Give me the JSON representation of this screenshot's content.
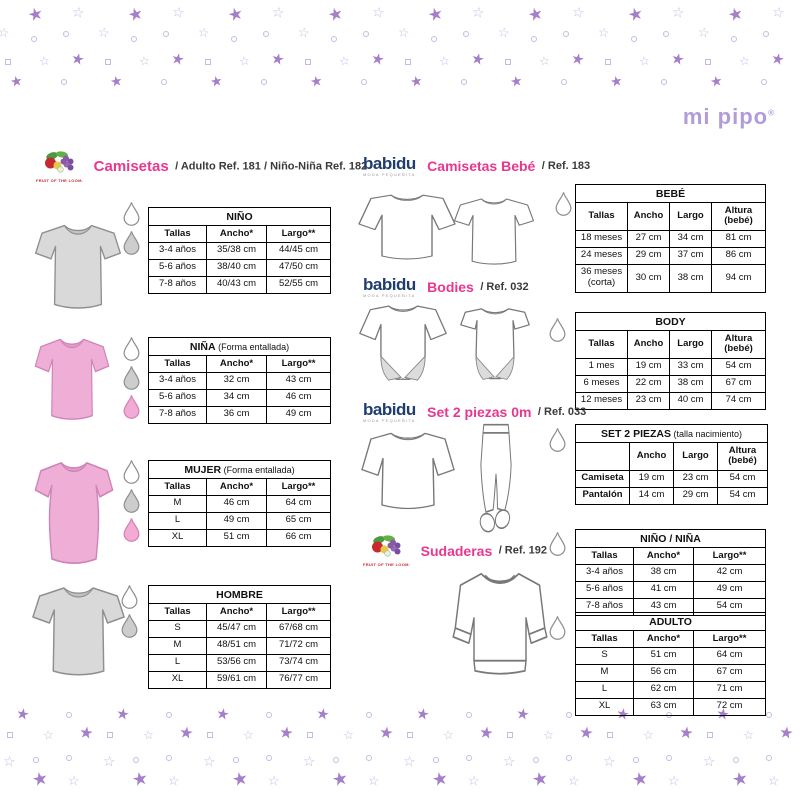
{
  "logos": {
    "mipipo": "mi pipo",
    "registered": "®",
    "fruit_of_the_loom": "FRUIT OF THE LOOM.",
    "babidu": "babidu",
    "babidu_tagline": "moda pequeñita"
  },
  "colors": {
    "accent_pink": "#e8378f",
    "babidu_navy": "#1f3d70",
    "mipipo_purple": "#b19cd8",
    "star_purple": "#a57fc9",
    "star_outline": "#c9b9e4",
    "tee_grey": "#d9d9d9",
    "tee_pink": "#efaed6"
  },
  "sections": {
    "camisetas": {
      "brand": "fruit-of-the-loom",
      "title": "Camisetas",
      "ref": "/ Adulto Ref. 181 / Niño-Niña Ref. 182"
    },
    "camisetas_bebe": {
      "brand": "babidu",
      "title": "Camisetas Bebé",
      "ref": "/ Ref. 183"
    },
    "bodies": {
      "brand": "babidu",
      "title": "Bodies",
      "ref": "/ Ref. 032"
    },
    "set_2_piezas": {
      "brand": "babidu",
      "title": "Set 2 piezas 0m",
      "ref": "/ Ref. 033"
    },
    "sudaderas": {
      "brand": "fruit-of-the-loom",
      "title": "Sudaderas",
      "ref": "/ Ref. 192"
    }
  },
  "tables": {
    "nino": {
      "title": "NIÑO",
      "note": "",
      "headers": [
        "Tallas",
        "Ancho*",
        "Largo**"
      ],
      "rows": [
        [
          "3-4 años",
          "35/38 cm",
          "44/45 cm"
        ],
        [
          "5-6 años",
          "38/40 cm",
          "47/50 cm"
        ],
        [
          "7-8 años",
          "40/43 cm",
          "52/55 cm"
        ]
      ],
      "drops": [
        "white",
        "grey"
      ]
    },
    "nina": {
      "title": "NIÑA",
      "note": "(Forma entallada)",
      "headers": [
        "Tallas",
        "Ancho*",
        "Largo**"
      ],
      "rows": [
        [
          "3-4 años",
          "32 cm",
          "43 cm"
        ],
        [
          "5-6 años",
          "34 cm",
          "46 cm"
        ],
        [
          "7-8 años",
          "36 cm",
          "49 cm"
        ]
      ],
      "drops": [
        "white",
        "grey",
        "pink"
      ]
    },
    "mujer": {
      "title": "MUJER",
      "note": "(Forma entallada)",
      "headers": [
        "Tallas",
        "Ancho*",
        "Largo**"
      ],
      "rows": [
        [
          "M",
          "46 cm",
          "64 cm"
        ],
        [
          "L",
          "49 cm",
          "65 cm"
        ],
        [
          "XL",
          "51 cm",
          "66 cm"
        ]
      ],
      "drops": [
        "white",
        "grey",
        "pink"
      ]
    },
    "hombre": {
      "title": "HOMBRE",
      "note": "",
      "headers": [
        "Tallas",
        "Ancho*",
        "Largo**"
      ],
      "rows": [
        [
          "S",
          "45/47 cm",
          "67/68 cm"
        ],
        [
          "M",
          "48/51 cm",
          "71/72 cm"
        ],
        [
          "L",
          "53/56 cm",
          "73/74 cm"
        ],
        [
          "XL",
          "59/61 cm",
          "76/77 cm"
        ]
      ],
      "drops": [
        "white",
        "grey"
      ]
    },
    "bebe": {
      "title": "BEBÉ",
      "note": "",
      "headers": [
        "Tallas",
        "Ancho",
        "Largo",
        "Altura (bebé)"
      ],
      "rows": [
        [
          "18 meses",
          "27 cm",
          "34 cm",
          "81 cm"
        ],
        [
          "24 meses",
          "29 cm",
          "37 cm",
          "86 cm"
        ],
        [
          "36 meses (corta)",
          "30 cm",
          "38 cm",
          "94 cm"
        ]
      ],
      "drops": [
        "white"
      ]
    },
    "body": {
      "title": "BODY",
      "note": "",
      "headers": [
        "Tallas",
        "Ancho",
        "Largo",
        "Altura (bebé)"
      ],
      "rows": [
        [
          "1 mes",
          "19 cm",
          "33 cm",
          "54 cm"
        ],
        [
          "6 meses",
          "22 cm",
          "38 cm",
          "67 cm"
        ],
        [
          "12 meses",
          "23 cm",
          "40 cm",
          "74 cm"
        ]
      ],
      "drops": [
        "white"
      ]
    },
    "set": {
      "title": "SET 2 PIEZAS",
      "note": "(talla nacimiento)",
      "headers": [
        "",
        "Ancho",
        "Largo",
        "Altura (bebé)"
      ],
      "rows": [
        [
          "Camiseta",
          "19 cm",
          "23 cm",
          "54 cm"
        ],
        [
          "Pantalón",
          "14 cm",
          "29 cm",
          "54 cm"
        ]
      ],
      "drops": [
        "white"
      ],
      "bold_first_col": true
    },
    "nino_nina": {
      "title": "NIÑO / NIÑA",
      "note": "",
      "headers": [
        "Tallas",
        "Ancho*",
        "Largo**"
      ],
      "rows": [
        [
          "3-4 años",
          "38 cm",
          "42 cm"
        ],
        [
          "5-6 años",
          "41 cm",
          "49 cm"
        ],
        [
          "7-8 años",
          "43 cm",
          "54 cm"
        ]
      ],
      "drops": [
        "white"
      ]
    },
    "adulto": {
      "title": "ADULTO",
      "note": "",
      "headers": [
        "Tallas",
        "Ancho*",
        "Largo**"
      ],
      "rows": [
        [
          "S",
          "51 cm",
          "64 cm"
        ],
        [
          "M",
          "56 cm",
          "67 cm"
        ],
        [
          "L",
          "62 cm",
          "71 cm"
        ],
        [
          "XL",
          "63 cm",
          "72 cm"
        ]
      ],
      "drops": [
        "white"
      ]
    }
  }
}
